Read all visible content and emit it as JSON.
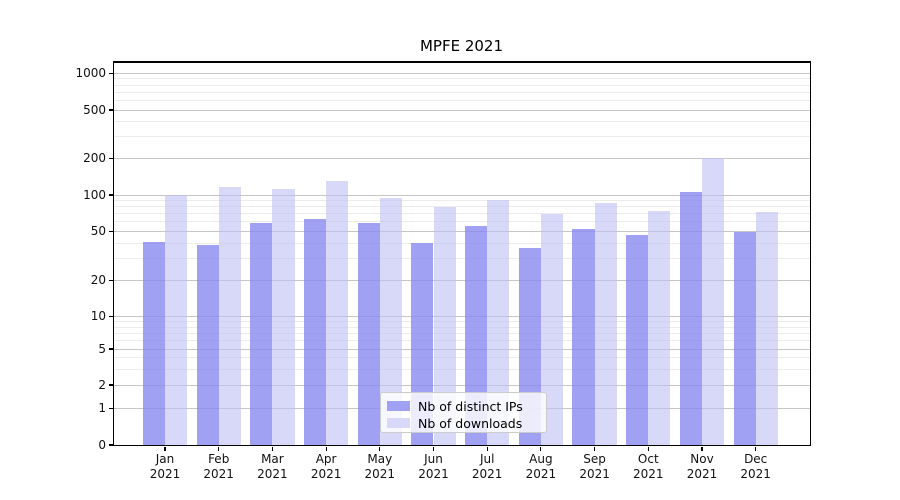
{
  "chart_data": {
    "type": "bar",
    "title": "MPFE 2021",
    "year": "2021",
    "categories": [
      "Jan",
      "Feb",
      "Mar",
      "Apr",
      "May",
      "Jun",
      "Jul",
      "Aug",
      "Sep",
      "Oct",
      "Nov",
      "Dec"
    ],
    "series": [
      {
        "name": "Nb of distinct IPs",
        "color": "rgba(137,137,240,0.8)",
        "legend_color": "#a1a1f3",
        "values": [
          41,
          39,
          59,
          64,
          59,
          40,
          56,
          37,
          53,
          47,
          105,
          50
        ]
      },
      {
        "name": "Nb of downloads",
        "color": "rgba(190,190,245,0.6)",
        "legend_color": "#d8d8f9",
        "values": [
          100,
          117,
          111,
          130,
          95,
          79,
          91,
          70,
          86,
          74,
          200,
          73
        ]
      }
    ],
    "yticks": [
      0,
      1,
      2,
      5,
      10,
      20,
      50,
      100,
      200,
      500,
      1000
    ],
    "yscale": "symlog",
    "ylim": [
      0,
      1400
    ],
    "xlabel": "",
    "ylabel": "",
    "grid": true,
    "legend_position": "lower center"
  },
  "colors": {
    "major_grid": "#c6c6c6",
    "minor_grid": "#ececec",
    "spine": "#000000",
    "text": "#111111",
    "background": "#ffffff",
    "legend_border": "#cccccc"
  }
}
